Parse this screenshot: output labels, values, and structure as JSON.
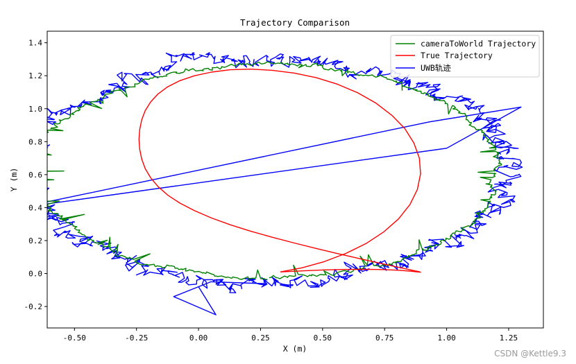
{
  "chart_data": {
    "type": "line",
    "title": "Trajectory Comparison",
    "xlabel": "X (m)",
    "ylabel": "Y (m)",
    "xlim": [
      -0.61,
      1.39
    ],
    "ylim": [
      -0.33,
      1.47
    ],
    "xticks": [
      -0.5,
      -0.25,
      0.0,
      0.25,
      0.5,
      0.75,
      1.0,
      1.25
    ],
    "xtick_labels": [
      "-0.50",
      "-0.25",
      "0.00",
      "0.25",
      "0.50",
      "0.75",
      "1.00",
      "1.25"
    ],
    "yticks": [
      -0.2,
      0.0,
      0.2,
      0.4,
      0.6,
      0.8,
      1.0,
      1.2,
      1.4
    ],
    "ytick_labels": [
      "-0.2",
      "0.0",
      "0.2",
      "0.4",
      "0.6",
      "0.8",
      "1.0",
      "1.2",
      "1.4"
    ],
    "grid": false,
    "legend_position": "top-right",
    "series": [
      {
        "name": "cameraToWorld Trajectory",
        "color": "#008000",
        "kind": "noisy-ellipse",
        "center": [
          0.28,
          0.62
        ],
        "radii": [
          0.93,
          0.65
        ],
        "noise": 0.012,
        "spikes": 0.35,
        "points": 700,
        "seed": 7
      },
      {
        "name": "True Trajectory",
        "color": "#ff0000",
        "kind": "ellipse-path",
        "x": [
          0.33,
          0.418,
          0.506,
          0.594,
          0.675,
          0.746,
          0.806,
          0.852,
          0.882,
          0.895,
          0.89,
          0.868,
          0.831,
          0.779,
          0.716,
          0.642,
          0.561,
          0.475,
          0.386,
          0.297,
          0.21,
          0.128,
          0.052,
          -0.016,
          -0.075,
          -0.124,
          -0.163,
          -0.193,
          -0.215,
          -0.229,
          -0.237,
          -0.24,
          -0.237,
          -0.229,
          -0.215,
          -0.193,
          -0.163,
          -0.124,
          -0.075,
          -0.016,
          0.052,
          0.128,
          0.21,
          0.297,
          0.386,
          0.475,
          0.561,
          0.642,
          0.716,
          0.779,
          0.831,
          0.868,
          0.89,
          0.895,
          0.882,
          0.852,
          0.806,
          0.746,
          0.675,
          0.594,
          0.506,
          0.418,
          0.33
        ],
        "y": [
          0.01,
          0.035,
          0.072,
          0.122,
          0.182,
          0.252,
          0.331,
          0.418,
          0.51,
          0.605,
          0.7,
          0.792,
          0.88,
          0.96,
          1.033,
          1.096,
          1.148,
          1.188,
          1.216,
          1.233,
          1.24,
          1.236,
          1.222,
          1.2,
          1.17,
          1.133,
          1.09,
          1.041,
          0.988,
          0.932,
          0.873,
          0.814,
          0.754,
          0.695,
          0.637,
          0.581,
          0.527,
          0.476,
          0.427,
          0.381,
          0.337,
          0.296,
          0.257,
          0.22,
          0.185,
          0.152,
          0.121,
          0.093,
          0.068,
          0.047,
          0.03,
          0.018,
          0.011,
          0.008,
          0.01,
          0.015,
          0.02,
          0.024,
          0.026,
          0.025,
          0.022,
          0.016,
          0.01
        ]
      },
      {
        "name": "UWB轨迹",
        "color": "#0000ff",
        "kind": "noisy-ellipse",
        "center": [
          0.28,
          0.62
        ],
        "radii": [
          0.96,
          0.68
        ],
        "noise": 0.045,
        "spikes": 0.0,
        "points": 900,
        "seed": 13,
        "excursion": [
          [
            0.93,
            0.92
          ],
          [
            1.3,
            1.01
          ],
          [
            1.0,
            0.76
          ],
          [
            0.05,
            -0.05
          ],
          [
            -0.1,
            -0.14
          ],
          [
            0.07,
            -0.25
          ],
          [
            0.0,
            -0.08
          ]
        ]
      }
    ]
  },
  "watermark": "CSDN @Kettle9.3"
}
